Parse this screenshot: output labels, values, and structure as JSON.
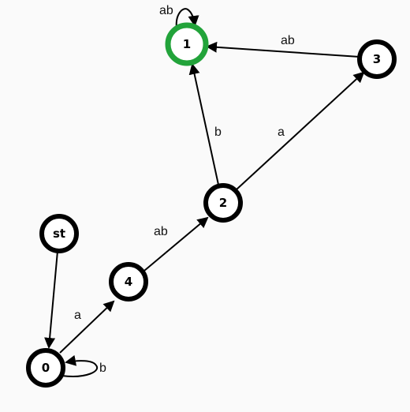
{
  "diagram": {
    "nodes": [
      {
        "id": "st",
        "label": "st",
        "accepting": false
      },
      {
        "id": "0",
        "label": "0",
        "accepting": false
      },
      {
        "id": "1",
        "label": "1",
        "accepting": true
      },
      {
        "id": "2",
        "label": "2",
        "accepting": false
      },
      {
        "id": "3",
        "label": "3",
        "accepting": false
      },
      {
        "id": "4",
        "label": "4",
        "accepting": false
      }
    ],
    "edges": [
      {
        "from": "st",
        "to": "0",
        "label": ""
      },
      {
        "from": "0",
        "to": "4",
        "label": "a"
      },
      {
        "from": "0",
        "to": "0",
        "label": "b"
      },
      {
        "from": "4",
        "to": "2",
        "label": "ab"
      },
      {
        "from": "2",
        "to": "1",
        "label": "b"
      },
      {
        "from": "2",
        "to": "3",
        "label": "a"
      },
      {
        "from": "3",
        "to": "1",
        "label": "ab"
      },
      {
        "from": "1",
        "to": "1",
        "label": "ab"
      }
    ],
    "colors": {
      "stroke": "#000000",
      "accept_stroke": "#22a33a",
      "fill": "#ffffff",
      "background": "#fafafa"
    }
  }
}
